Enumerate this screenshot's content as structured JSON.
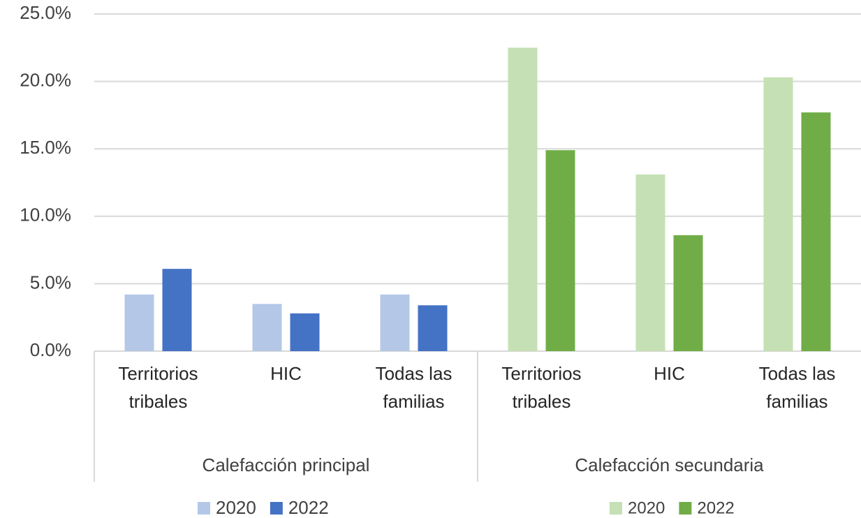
{
  "chart_data": {
    "type": "bar",
    "categories": [
      "Territorios tribales",
      "HIC",
      "Todas las familias",
      "Territorios tribales",
      "HIC",
      "Todas las familias"
    ],
    "group_labels": [
      "Calefacción principal",
      "Calefacción secundaria"
    ],
    "series": [
      {
        "name": "2020",
        "color": "#b4c7e7",
        "values": [
          4.2,
          3.5,
          4.2,
          null,
          null,
          null
        ]
      },
      {
        "name": "2022",
        "color": "#4472c4",
        "values": [
          6.1,
          2.8,
          3.4,
          null,
          null,
          null
        ]
      },
      {
        "name": "2020",
        "color": "#c5e0b4",
        "values": [
          null,
          null,
          null,
          22.5,
          13.1,
          20.3
        ]
      },
      {
        "name": "2022",
        "color": "#70ad47",
        "values": [
          null,
          null,
          null,
          14.9,
          8.6,
          17.7
        ]
      }
    ],
    "ylim": [
      0,
      25
    ],
    "yticks": [
      {
        "value": 0,
        "label": "0.0%"
      },
      {
        "value": 5,
        "label": "5.0%"
      },
      {
        "value": 10,
        "label": "10.0%"
      },
      {
        "value": 15,
        "label": "15.0%"
      },
      {
        "value": 20,
        "label": "20.0%"
      },
      {
        "value": 25,
        "label": "25.0%"
      }
    ],
    "grid": true
  }
}
